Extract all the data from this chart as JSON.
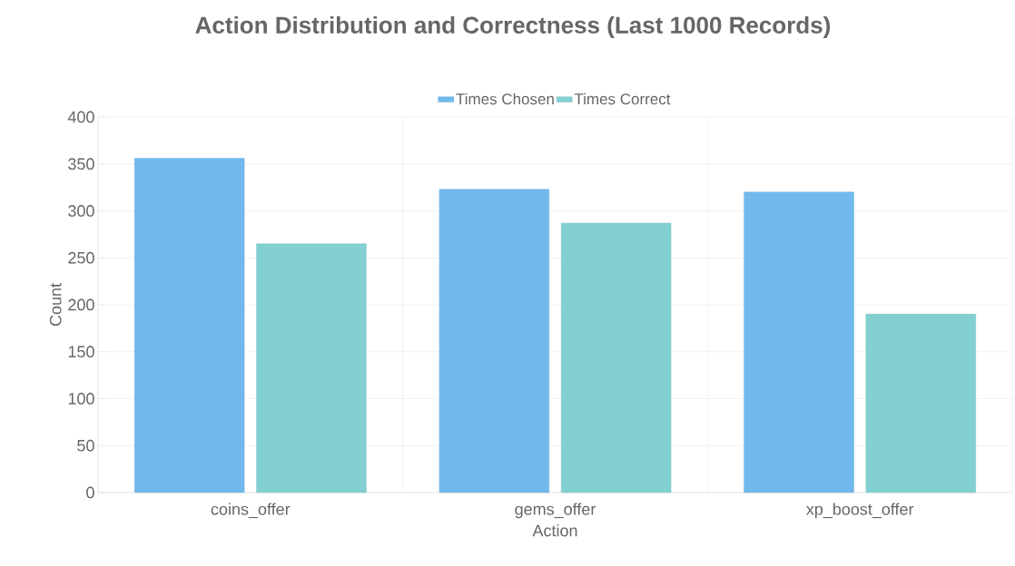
{
  "chart_data": {
    "type": "bar",
    "title": "Action Distribution and Correctness (Last 1000 Records)",
    "xlabel": "Action",
    "ylabel": "Count",
    "categories": [
      "coins_offer",
      "gems_offer",
      "xp_boost_offer"
    ],
    "series": [
      {
        "name": "Times Chosen",
        "color": "#71b9ec",
        "values": [
          356,
          323,
          320
        ]
      },
      {
        "name": "Times Correct",
        "color": "#82d0d1",
        "values": [
          265,
          287,
          190
        ]
      }
    ],
    "ylim": [
      0,
      400
    ],
    "yticks": [
      0,
      50,
      100,
      150,
      200,
      250,
      300,
      350,
      400
    ],
    "grid": true,
    "legend": "top"
  }
}
